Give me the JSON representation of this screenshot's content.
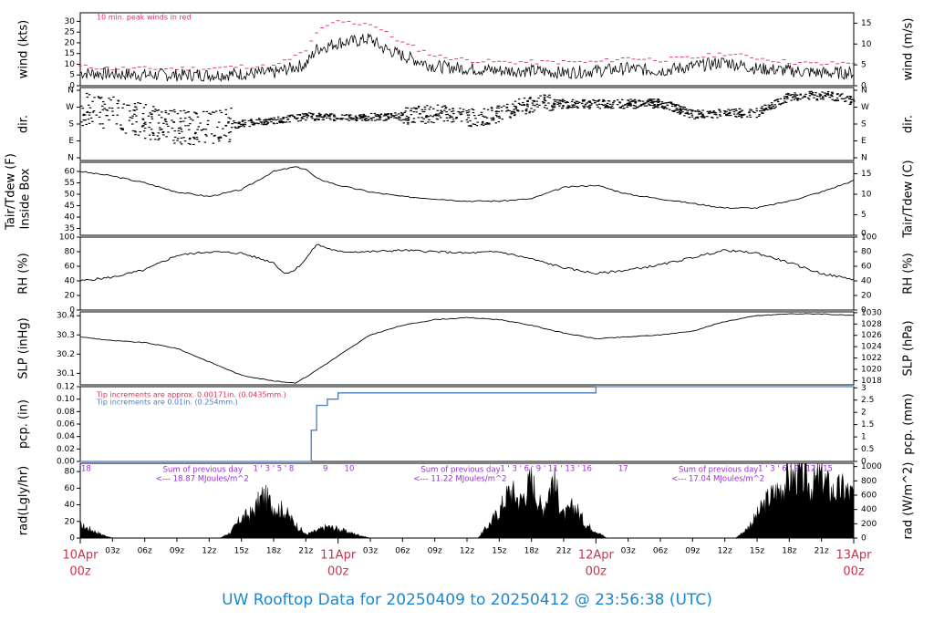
{
  "footer_title": "UW Rooftop Data for 20250409  to  20250412 @ 23:56:38  (UTC)",
  "colors": {
    "footer": "#1a88d0",
    "peak": "#e0305a",
    "date": "#d0304a",
    "pcp_line": "#4a7bc8",
    "rad_note": "#9a2ed8",
    "ink": "#000000"
  },
  "chart_data": [
    {
      "type": "line",
      "id": "wind",
      "ylabel_left": "wind (kts)",
      "ylabel_right": "wind (m/s)",
      "ylim": [
        0,
        34
      ],
      "yticks_left": [
        0,
        5,
        10,
        15,
        20,
        25,
        30
      ],
      "yticks_right": [
        0,
        5,
        10,
        15
      ],
      "annotation": "10 min. peak winds in red",
      "series": [
        {
          "name": "wind",
          "x": [
            0,
            3,
            6,
            9,
            12,
            15,
            18,
            21,
            22,
            24,
            26,
            27,
            28,
            30,
            33,
            36,
            39,
            42,
            45,
            48,
            51,
            54,
            57,
            60,
            63,
            66,
            69,
            72
          ],
          "y": [
            6,
            5.5,
            5,
            5,
            5,
            5.5,
            6,
            10,
            17,
            20,
            21,
            22,
            18,
            14,
            9,
            8,
            7,
            7,
            6,
            7,
            8,
            7,
            9,
            11,
            8,
            7,
            6,
            6
          ]
        },
        {
          "name": "10 min. peak winds",
          "x": [
            0,
            3,
            6,
            9,
            12,
            15,
            18,
            21,
            22,
            24,
            26,
            27,
            28,
            30,
            33,
            36,
            39,
            42,
            45,
            48,
            51,
            54,
            57,
            60,
            63,
            66,
            69,
            72
          ],
          "y": [
            9,
            8,
            8,
            8,
            8,
            9,
            9,
            16,
            25,
            30,
            29,
            29,
            26,
            20,
            14,
            12,
            11,
            11,
            11,
            11,
            13,
            12,
            13,
            15,
            13,
            11,
            10,
            11
          ]
        }
      ]
    },
    {
      "type": "scatter",
      "id": "dir",
      "ylabel_left": "dir.",
      "ylabel_right": "dir.",
      "ytick_labels": [
        "N",
        "E",
        "S",
        "W",
        "N"
      ]
    },
    {
      "type": "line",
      "id": "temp",
      "ylabel_left": "Tair/Tdew (F)",
      "ylabel_left2": "Inside Box",
      "ylabel_right": "Tair/Tdew (C)",
      "ylim": [
        32,
        64
      ],
      "yticks_left": [
        35,
        40,
        45,
        50,
        55,
        60
      ],
      "yticks_right": [
        5,
        10,
        15
      ],
      "tick_right_zero": "0",
      "series": [
        {
          "name": "Tair",
          "x": [
            0,
            3,
            6,
            9,
            12,
            15,
            18,
            20,
            21,
            22,
            24,
            27,
            30,
            33,
            36,
            39,
            42,
            45,
            48,
            51,
            54,
            57,
            60,
            63,
            66,
            69,
            72
          ],
          "y": [
            60,
            58,
            55,
            51,
            49,
            52,
            60,
            62,
            61,
            57,
            54,
            51,
            49,
            48,
            47,
            47,
            48,
            53,
            54,
            50,
            48,
            46,
            44,
            44,
            47,
            51,
            56
          ]
        }
      ]
    },
    {
      "type": "line",
      "id": "rh",
      "ylabel_left": "RH (%)",
      "ylabel_right": "RH (%)",
      "ylim": [
        0,
        100
      ],
      "yticks": [
        0,
        20,
        40,
        60,
        80,
        100
      ],
      "series": [
        {
          "name": "RH",
          "x": [
            0,
            3,
            6,
            9,
            12,
            15,
            18,
            19,
            20,
            21,
            22,
            24,
            27,
            30,
            33,
            36,
            39,
            42,
            45,
            48,
            51,
            54,
            57,
            60,
            63,
            66,
            69,
            72
          ],
          "y": [
            40,
            45,
            55,
            75,
            80,
            78,
            65,
            50,
            55,
            70,
            90,
            80,
            80,
            82,
            80,
            78,
            80,
            70,
            58,
            50,
            55,
            62,
            72,
            82,
            78,
            65,
            50,
            42
          ]
        }
      ]
    },
    {
      "type": "line",
      "id": "slp",
      "ylabel_left": "SLP (inHg)",
      "ylabel_right": "SLP (hPa)",
      "ylim": [
        30.04,
        30.42
      ],
      "yticks_left": [
        30.1,
        30.2,
        30.3,
        30.4
      ],
      "yticks_right": [
        1018,
        1020,
        1022,
        1024,
        1026,
        1028,
        1030
      ],
      "series": [
        {
          "name": "SLP",
          "x": [
            0,
            3,
            6,
            9,
            12,
            15,
            18,
            20,
            21,
            24,
            27,
            30,
            33,
            36,
            39,
            42,
            45,
            48,
            51,
            54,
            57,
            60,
            63,
            66,
            69,
            72
          ],
          "y": [
            30.29,
            30.27,
            30.26,
            30.23,
            30.16,
            30.09,
            30.06,
            30.05,
            30.08,
            30.19,
            30.3,
            30.35,
            30.38,
            30.39,
            30.38,
            30.35,
            30.31,
            30.28,
            30.29,
            30.3,
            30.32,
            30.37,
            30.4,
            30.41,
            30.41,
            30.4
          ]
        }
      ]
    },
    {
      "type": "line",
      "id": "pcp",
      "ylabel_left": "pcp. (in)",
      "ylabel_right": "pcp. (mm)",
      "ylim": [
        0,
        0.12
      ],
      "yticks_left": [
        0,
        0.02,
        0.04,
        0.06,
        0.08,
        0.1,
        0.12
      ],
      "yticks_right": [
        "0",
        "0.5",
        "1",
        "1.5",
        "2",
        "2.5",
        "3"
      ],
      "note1": "Tip increments are approx. 0.00171in. (0.0435mm.)",
      "note2": "Tip increments are 0.01in. (0.254mm.)",
      "series": [
        {
          "name": "pcp",
          "x": [
            0,
            21,
            21.5,
            22,
            22.8,
            23,
            23.7,
            24,
            47,
            48,
            72
          ],
          "y": [
            0,
            0,
            0.05,
            0.09,
            0.09,
            0.1,
            0.1,
            0.11,
            0.11,
            0.12,
            0.12
          ]
        }
      ]
    },
    {
      "type": "area",
      "id": "rad",
      "ylabel_left": "rad(Lgly/hr)",
      "ylabel_right": "rad (W/m^2)",
      "ylim": [
        0,
        90
      ],
      "yticks_left": [
        0,
        20,
        40,
        60,
        80
      ],
      "yticks_right": [
        0,
        200,
        400,
        600,
        800,
        1000
      ],
      "day_notes": [
        {
          "x": 6,
          "sum_label": "Sum of previous day",
          "value_label": "<--- 18.87 MJoules/m^2"
        },
        {
          "x": 30,
          "sum_label": "Sum of previous day",
          "value_label": "<--- 11.22 MJoules/m^2"
        },
        {
          "x": 54,
          "sum_label": "Sum of previous day",
          "value_label": "<--- 17.04 MJoules/m^2"
        }
      ],
      "hour_marks": [
        {
          "x": 0,
          "label": "18"
        },
        {
          "x": 16,
          "label": "1 ' 3 ' 5 ' 8"
        },
        {
          "x": 22.5,
          "label": "9"
        },
        {
          "x": 24.5,
          "label": "10"
        },
        {
          "x": 39,
          "label": "1 ' 3 ' 6 ' 9 ' 11 ' 13 ' 16"
        },
        {
          "x": 50,
          "label": "17"
        },
        {
          "x": 63,
          "label": "1 ' 3 ' 6 ' 9 ' 12 ' 15"
        }
      ],
      "series": [
        {
          "name": "rad",
          "x": [
            0,
            1,
            2,
            3,
            13,
            14,
            15,
            16,
            17,
            18,
            19,
            20,
            21,
            22,
            23,
            24,
            25,
            26,
            27,
            37,
            38,
            39,
            40,
            41,
            42,
            43,
            44,
            45,
            46,
            47,
            48,
            49,
            61,
            62,
            63,
            64,
            65,
            66,
            67,
            68,
            69,
            70,
            71,
            72
          ],
          "y": [
            18,
            12,
            5,
            0,
            0,
            8,
            28,
            35,
            60,
            45,
            38,
            20,
            5,
            10,
            16,
            13,
            8,
            4,
            0,
            0,
            18,
            38,
            68,
            52,
            82,
            38,
            85,
            30,
            46,
            20,
            10,
            0,
            0,
            12,
            32,
            55,
            68,
            85,
            90,
            72,
            88,
            65,
            70,
            60
          ]
        }
      ]
    }
  ],
  "x_axis": {
    "hours": [
      "03z",
      "06z",
      "09z",
      "12z",
      "15z",
      "18z",
      "21z",
      "03z",
      "06z",
      "09z",
      "12z",
      "15z",
      "18z",
      "21z",
      "03z",
      "06z",
      "09z",
      "12z",
      "15z",
      "18z",
      "21z"
    ],
    "hour_x": [
      3,
      6,
      9,
      12,
      15,
      18,
      21,
      27,
      30,
      33,
      36,
      39,
      42,
      45,
      51,
      54,
      57,
      60,
      63,
      66,
      69
    ],
    "dates": [
      {
        "x": 0,
        "day": "10Apr",
        "z": "00z"
      },
      {
        "x": 24,
        "day": "11Apr",
        "z": "00z"
      },
      {
        "x": 48,
        "day": "12Apr",
        "z": "00z"
      },
      {
        "x": 72,
        "day": "13Apr",
        "z": "00z"
      }
    ]
  }
}
